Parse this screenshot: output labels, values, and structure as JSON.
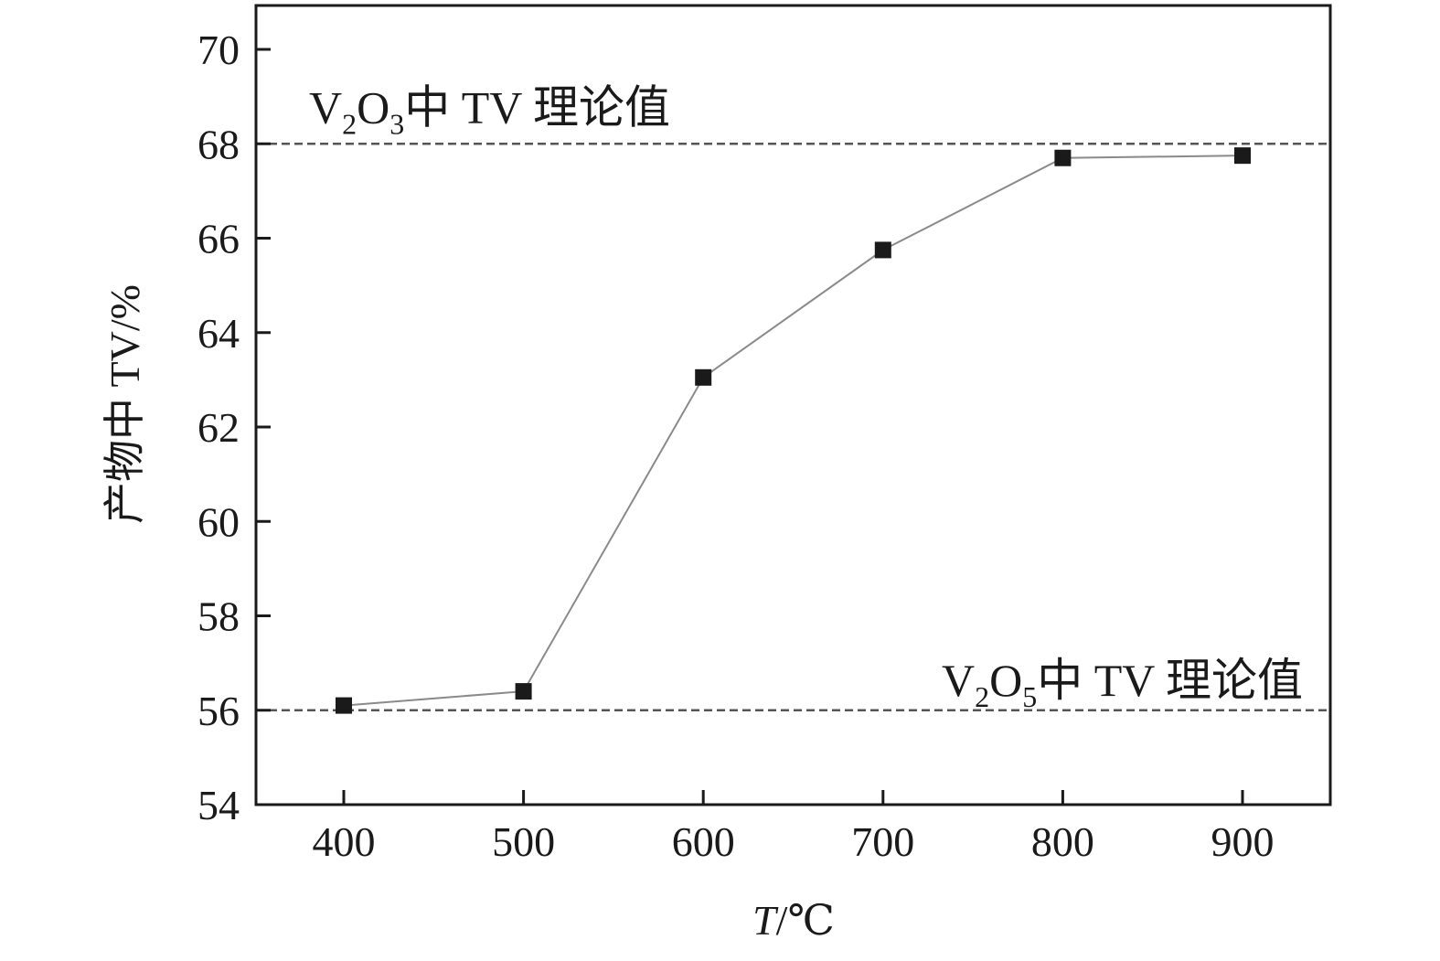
{
  "chart_data": {
    "type": "line",
    "x": [
      400,
      500,
      600,
      700,
      800,
      900
    ],
    "series": [
      {
        "values": [
          56.1,
          56.4,
          63.05,
          65.75,
          67.7,
          67.75
        ]
      }
    ],
    "xlabel": {
      "italic": "T",
      "rest": "/℃"
    },
    "ylabel": "产物中 TV/%",
    "xlim": [
      350,
      950
    ],
    "ylim": [
      54,
      71
    ],
    "xticks": [
      "400",
      "500",
      "600",
      "700",
      "800",
      "900"
    ],
    "yticks": [
      "54",
      "56",
      "58",
      "60",
      "62",
      "64",
      "66",
      "68",
      "70"
    ],
    "reference_lines": [
      {
        "y": 68,
        "label": {
          "base": "V",
          "sub1": "2",
          "mid": "O",
          "sub2": "3",
          "rest": "中 TV 理论值"
        }
      },
      {
        "y": 56,
        "label": {
          "base": "V",
          "sub1": "2",
          "mid": "O",
          "sub2": "5",
          "rest": "中 TV 理论值"
        }
      }
    ],
    "grid": false,
    "legend": "none",
    "colors": {
      "line": "#8a8a8a",
      "marker": "#1a1a1a",
      "axis": "#1a1a1a",
      "reference": "#555555"
    }
  }
}
